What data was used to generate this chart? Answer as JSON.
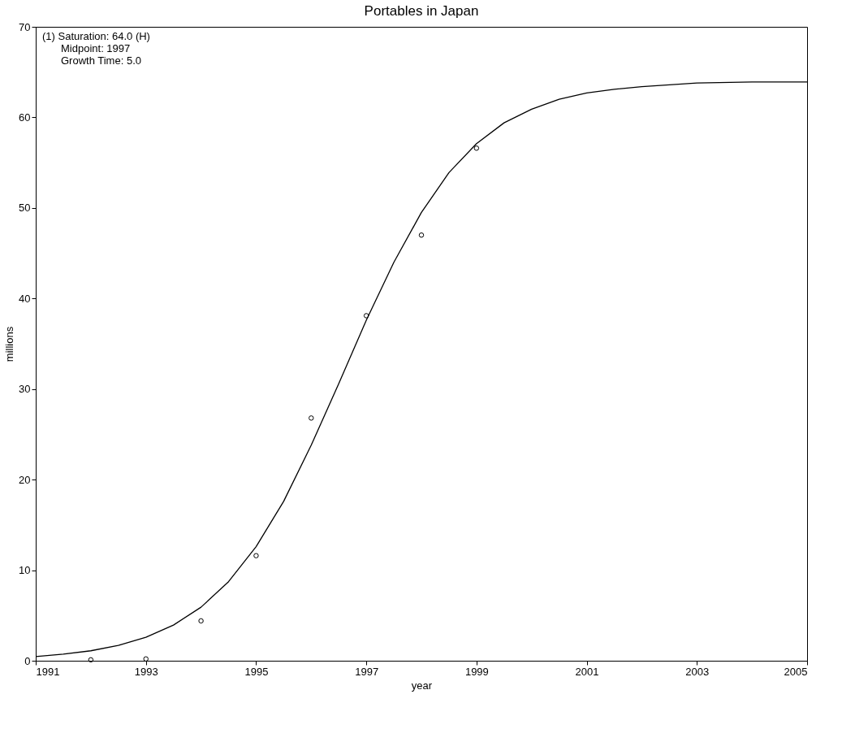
{
  "chart_data": {
    "type": "scatter",
    "title": "Portables in Japan",
    "xlabel": "year",
    "ylabel": "millions",
    "xlim": [
      1991,
      2005
    ],
    "xticks": [
      1991,
      1993,
      1995,
      1997,
      1999,
      2001,
      2003,
      2005
    ],
    "ylim": [
      0,
      70
    ],
    "yticks": [
      0,
      10,
      20,
      30,
      40,
      50,
      60,
      70
    ],
    "grid": false,
    "annotations": [
      "(1) Saturation:     64.0 (H)",
      "Midpoint:       1997",
      "Growth Time: 5.0"
    ],
    "series": [
      {
        "marker": "circle",
        "color": "#000000",
        "x": [
          1992,
          1993,
          1994,
          1995,
          1996,
          1997,
          1998,
          1999
        ],
        "values": [
          0.1,
          0.2,
          4.4,
          11.6,
          26.8,
          38.1,
          47.0,
          56.6
        ]
      },
      {
        "type": "line",
        "marker": "none",
        "line_style": "solid",
        "color": "#000000",
        "x": [
          1991,
          1991.5,
          1992,
          1992.5,
          1993,
          1993.5,
          1994,
          1994.5,
          1995,
          1995.5,
          1996,
          1996.5,
          1997,
          1997.5,
          1998,
          1998.5,
          1999,
          1999.5,
          2000,
          2000.5,
          2001,
          2001.5,
          2002,
          2003,
          2004,
          2005
        ],
        "values": [
          0.46,
          0.72,
          1.1,
          1.7,
          2.59,
          3.94,
          5.91,
          8.73,
          12.6,
          17.6,
          23.8,
          30.6,
          37.6,
          44.0,
          49.5,
          53.9,
          57.1,
          59.4,
          60.9,
          62.0,
          62.7,
          63.1,
          63.4,
          63.8,
          63.9,
          63.9
        ]
      }
    ]
  }
}
